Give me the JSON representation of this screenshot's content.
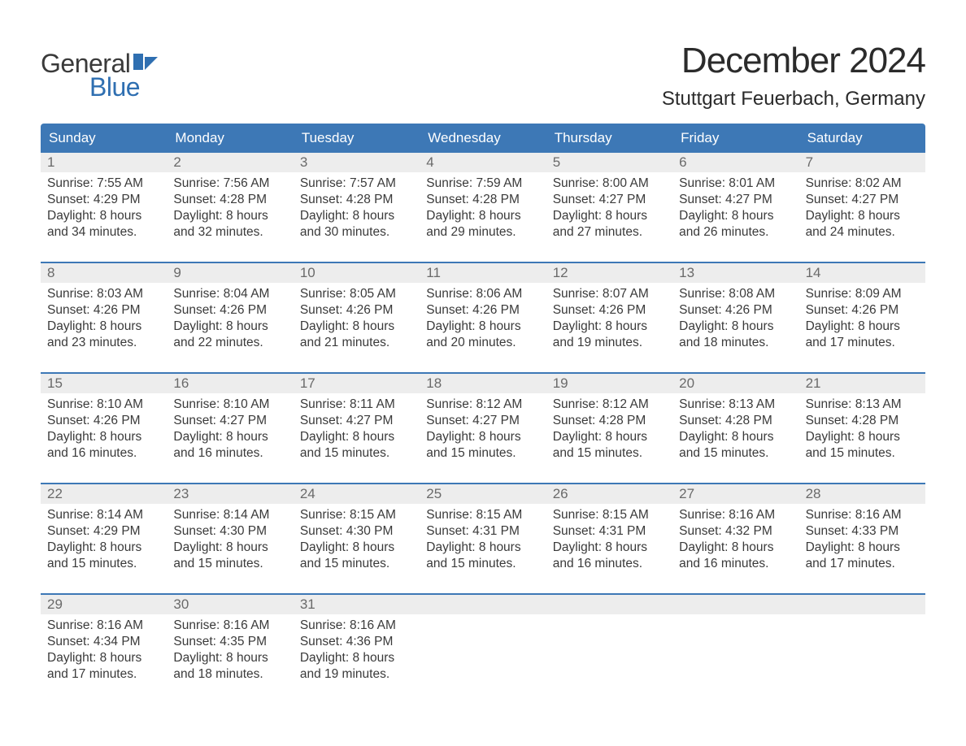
{
  "brand": {
    "top_text": "General",
    "bottom_text": "Blue",
    "top_color": "#3a3a3a",
    "bottom_color": "#2f6fb1",
    "flag_color": "#2f6fb1"
  },
  "header": {
    "month_title": "December 2024",
    "location": "Stuttgart Feuerbach, Germany"
  },
  "colors": {
    "header_bg": "#3d78b6",
    "header_text": "#ffffff",
    "week_divider": "#3d78b6",
    "daynum_bg": "#ededed",
    "daynum_text": "#6a6a6a",
    "body_text": "#3a3a3a",
    "page_bg": "#ffffff"
  },
  "typography": {
    "month_title_pt": 44,
    "location_pt": 24,
    "dow_pt": 17,
    "daynum_pt": 17,
    "body_pt": 15.5
  },
  "days_of_week": [
    "Sunday",
    "Monday",
    "Tuesday",
    "Wednesday",
    "Thursday",
    "Friday",
    "Saturday"
  ],
  "weeks": [
    [
      {
        "day": "1",
        "sunrise": "Sunrise: 7:55 AM",
        "sunset": "Sunset: 4:29 PM",
        "d1": "Daylight: 8 hours",
        "d2": "and 34 minutes."
      },
      {
        "day": "2",
        "sunrise": "Sunrise: 7:56 AM",
        "sunset": "Sunset: 4:28 PM",
        "d1": "Daylight: 8 hours",
        "d2": "and 32 minutes."
      },
      {
        "day": "3",
        "sunrise": "Sunrise: 7:57 AM",
        "sunset": "Sunset: 4:28 PM",
        "d1": "Daylight: 8 hours",
        "d2": "and 30 minutes."
      },
      {
        "day": "4",
        "sunrise": "Sunrise: 7:59 AM",
        "sunset": "Sunset: 4:28 PM",
        "d1": "Daylight: 8 hours",
        "d2": "and 29 minutes."
      },
      {
        "day": "5",
        "sunrise": "Sunrise: 8:00 AM",
        "sunset": "Sunset: 4:27 PM",
        "d1": "Daylight: 8 hours",
        "d2": "and 27 minutes."
      },
      {
        "day": "6",
        "sunrise": "Sunrise: 8:01 AM",
        "sunset": "Sunset: 4:27 PM",
        "d1": "Daylight: 8 hours",
        "d2": "and 26 minutes."
      },
      {
        "day": "7",
        "sunrise": "Sunrise: 8:02 AM",
        "sunset": "Sunset: 4:27 PM",
        "d1": "Daylight: 8 hours",
        "d2": "and 24 minutes."
      }
    ],
    [
      {
        "day": "8",
        "sunrise": "Sunrise: 8:03 AM",
        "sunset": "Sunset: 4:26 PM",
        "d1": "Daylight: 8 hours",
        "d2": "and 23 minutes."
      },
      {
        "day": "9",
        "sunrise": "Sunrise: 8:04 AM",
        "sunset": "Sunset: 4:26 PM",
        "d1": "Daylight: 8 hours",
        "d2": "and 22 minutes."
      },
      {
        "day": "10",
        "sunrise": "Sunrise: 8:05 AM",
        "sunset": "Sunset: 4:26 PM",
        "d1": "Daylight: 8 hours",
        "d2": "and 21 minutes."
      },
      {
        "day": "11",
        "sunrise": "Sunrise: 8:06 AM",
        "sunset": "Sunset: 4:26 PM",
        "d1": "Daylight: 8 hours",
        "d2": "and 20 minutes."
      },
      {
        "day": "12",
        "sunrise": "Sunrise: 8:07 AM",
        "sunset": "Sunset: 4:26 PM",
        "d1": "Daylight: 8 hours",
        "d2": "and 19 minutes."
      },
      {
        "day": "13",
        "sunrise": "Sunrise: 8:08 AM",
        "sunset": "Sunset: 4:26 PM",
        "d1": "Daylight: 8 hours",
        "d2": "and 18 minutes."
      },
      {
        "day": "14",
        "sunrise": "Sunrise: 8:09 AM",
        "sunset": "Sunset: 4:26 PM",
        "d1": "Daylight: 8 hours",
        "d2": "and 17 minutes."
      }
    ],
    [
      {
        "day": "15",
        "sunrise": "Sunrise: 8:10 AM",
        "sunset": "Sunset: 4:26 PM",
        "d1": "Daylight: 8 hours",
        "d2": "and 16 minutes."
      },
      {
        "day": "16",
        "sunrise": "Sunrise: 8:10 AM",
        "sunset": "Sunset: 4:27 PM",
        "d1": "Daylight: 8 hours",
        "d2": "and 16 minutes."
      },
      {
        "day": "17",
        "sunrise": "Sunrise: 8:11 AM",
        "sunset": "Sunset: 4:27 PM",
        "d1": "Daylight: 8 hours",
        "d2": "and 15 minutes."
      },
      {
        "day": "18",
        "sunrise": "Sunrise: 8:12 AM",
        "sunset": "Sunset: 4:27 PM",
        "d1": "Daylight: 8 hours",
        "d2": "and 15 minutes."
      },
      {
        "day": "19",
        "sunrise": "Sunrise: 8:12 AM",
        "sunset": "Sunset: 4:28 PM",
        "d1": "Daylight: 8 hours",
        "d2": "and 15 minutes."
      },
      {
        "day": "20",
        "sunrise": "Sunrise: 8:13 AM",
        "sunset": "Sunset: 4:28 PM",
        "d1": "Daylight: 8 hours",
        "d2": "and 15 minutes."
      },
      {
        "day": "21",
        "sunrise": "Sunrise: 8:13 AM",
        "sunset": "Sunset: 4:28 PM",
        "d1": "Daylight: 8 hours",
        "d2": "and 15 minutes."
      }
    ],
    [
      {
        "day": "22",
        "sunrise": "Sunrise: 8:14 AM",
        "sunset": "Sunset: 4:29 PM",
        "d1": "Daylight: 8 hours",
        "d2": "and 15 minutes."
      },
      {
        "day": "23",
        "sunrise": "Sunrise: 8:14 AM",
        "sunset": "Sunset: 4:30 PM",
        "d1": "Daylight: 8 hours",
        "d2": "and 15 minutes."
      },
      {
        "day": "24",
        "sunrise": "Sunrise: 8:15 AM",
        "sunset": "Sunset: 4:30 PM",
        "d1": "Daylight: 8 hours",
        "d2": "and 15 minutes."
      },
      {
        "day": "25",
        "sunrise": "Sunrise: 8:15 AM",
        "sunset": "Sunset: 4:31 PM",
        "d1": "Daylight: 8 hours",
        "d2": "and 15 minutes."
      },
      {
        "day": "26",
        "sunrise": "Sunrise: 8:15 AM",
        "sunset": "Sunset: 4:31 PM",
        "d1": "Daylight: 8 hours",
        "d2": "and 16 minutes."
      },
      {
        "day": "27",
        "sunrise": "Sunrise: 8:16 AM",
        "sunset": "Sunset: 4:32 PM",
        "d1": "Daylight: 8 hours",
        "d2": "and 16 minutes."
      },
      {
        "day": "28",
        "sunrise": "Sunrise: 8:16 AM",
        "sunset": "Sunset: 4:33 PM",
        "d1": "Daylight: 8 hours",
        "d2": "and 17 minutes."
      }
    ],
    [
      {
        "day": "29",
        "sunrise": "Sunrise: 8:16 AM",
        "sunset": "Sunset: 4:34 PM",
        "d1": "Daylight: 8 hours",
        "d2": "and 17 minutes."
      },
      {
        "day": "30",
        "sunrise": "Sunrise: 8:16 AM",
        "sunset": "Sunset: 4:35 PM",
        "d1": "Daylight: 8 hours",
        "d2": "and 18 minutes."
      },
      {
        "day": "31",
        "sunrise": "Sunrise: 8:16 AM",
        "sunset": "Sunset: 4:36 PM",
        "d1": "Daylight: 8 hours",
        "d2": "and 19 minutes."
      },
      null,
      null,
      null,
      null
    ]
  ]
}
